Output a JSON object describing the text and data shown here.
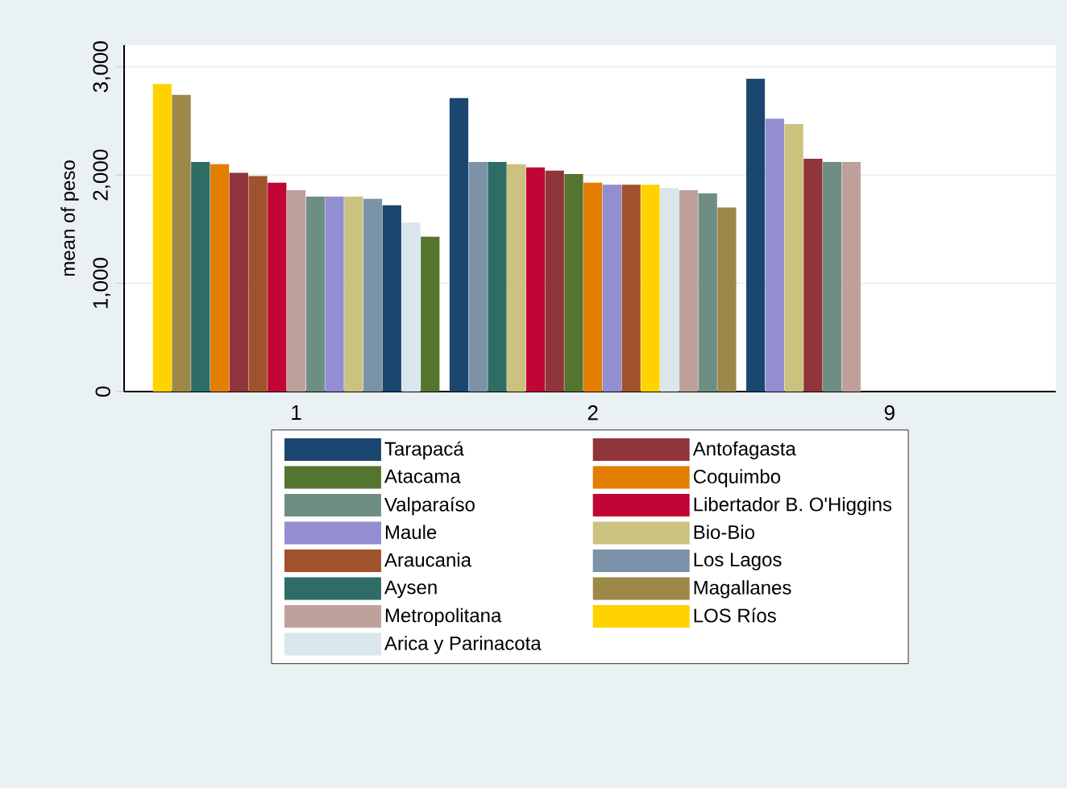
{
  "chart_data": {
    "type": "bar",
    "ylabel": "mean of peso",
    "categories": [
      "1",
      "2",
      "9"
    ],
    "ylim": [
      0,
      3200
    ],
    "yticks": [
      0,
      {
        "value": 1000,
        "label": "1,000"
      },
      {
        "value": 2000,
        "label": "2,000"
      },
      {
        "value": 3000,
        "label": "3,000"
      }
    ],
    "grid": "y",
    "legend": "bottom",
    "series": [
      {
        "name": "Tarapacá",
        "color": "#1a476f",
        "values": [
          1720,
          2710,
          2890
        ]
      },
      {
        "name": "Antofagasta",
        "color": "#90353b",
        "values": [
          2020,
          2040,
          2150
        ]
      },
      {
        "name": "Atacama",
        "color": "#55752f",
        "values": [
          1430,
          2010,
          null
        ]
      },
      {
        "name": "Coquimbo",
        "color": "#e37e00",
        "values": [
          2100,
          1930,
          null
        ]
      },
      {
        "name": "Valparaíso",
        "color": "#6e8e84",
        "values": [
          1800,
          1830,
          2120
        ]
      },
      {
        "name": "Libertador B. O'Higgins",
        "color": "#c10534",
        "values": [
          1930,
          2070,
          null
        ]
      },
      {
        "name": "Maule",
        "color": "#938dd2",
        "values": [
          1800,
          1910,
          2520
        ]
      },
      {
        "name": "Bio-Bio",
        "color": "#cac27e",
        "values": [
          1800,
          2100,
          2470
        ]
      },
      {
        "name": "Araucania",
        "color": "#a0522d",
        "values": [
          1990,
          1910,
          null
        ]
      },
      {
        "name": "Los Lagos",
        "color": "#7b92a8",
        "values": [
          1780,
          2120,
          null
        ]
      },
      {
        "name": "Aysen",
        "color": "#2d6d66",
        "values": [
          2120,
          2120,
          null
        ]
      },
      {
        "name": "Magallanes",
        "color": "#9c8847",
        "values": [
          2740,
          1700,
          null
        ]
      },
      {
        "name": "Metropolitana",
        "color": "#bfa19c",
        "values": [
          1860,
          1860,
          2120
        ]
      },
      {
        "name": "LOS Ríos",
        "color": "#ffd200",
        "values": [
          2840,
          1910,
          null
        ]
      },
      {
        "name": "Arica y Parinacota",
        "color": "#d9e6eb",
        "values": [
          1560,
          1880,
          null
        ]
      }
    ]
  }
}
